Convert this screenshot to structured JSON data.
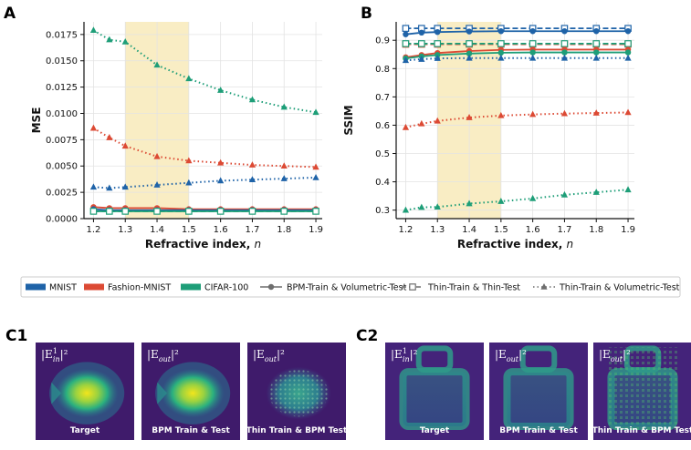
{
  "chart_data": [
    {
      "panel": "A",
      "type": "line",
      "xlabel_main": "Refractive index, ",
      "xlabel_var": "n",
      "ylabel": "MSE",
      "xlim": [
        1.17,
        1.92
      ],
      "ylim": [
        0,
        0.0187
      ],
      "x_ticks": [
        "1.2",
        "1.3",
        "1.4",
        "1.5",
        "1.6",
        "1.7",
        "1.8",
        "1.9"
      ],
      "y_ticks": [
        "0.0000",
        "0.0025",
        "0.0050",
        "0.0075",
        "0.0100",
        "0.0125",
        "0.0150",
        "0.0175"
      ],
      "highlight_range": [
        1.3,
        1.5
      ],
      "grid": true,
      "series": [
        {
          "dataset": "MNIST",
          "method": "Thin-Train & Volumetric-Test",
          "x": [
            1.2,
            1.25,
            1.3,
            1.4,
            1.5,
            1.6,
            1.7,
            1.8,
            1.9
          ],
          "values": [
            0.003,
            0.0029,
            0.003,
            0.0032,
            0.0034,
            0.0036,
            0.0037,
            0.0038,
            0.0039
          ]
        },
        {
          "dataset": "Fashion-MNIST",
          "method": "Thin-Train & Volumetric-Test",
          "x": [
            1.2,
            1.25,
            1.3,
            1.4,
            1.5,
            1.6,
            1.7,
            1.8,
            1.9
          ],
          "values": [
            0.0086,
            0.0077,
            0.0069,
            0.0059,
            0.0055,
            0.0053,
            0.0051,
            0.005,
            0.0049
          ]
        },
        {
          "dataset": "CIFAR-100",
          "method": "Thin-Train & Volumetric-Test",
          "x": [
            1.2,
            1.25,
            1.3,
            1.4,
            1.5,
            1.6,
            1.7,
            1.8,
            1.9
          ],
          "values": [
            0.0179,
            0.017,
            0.0168,
            0.0146,
            0.0133,
            0.0122,
            0.0113,
            0.0106,
            0.0101
          ]
        },
        {
          "dataset": "Fashion-MNIST",
          "method": "BPM-Train & Volumetric-Test",
          "x": [
            1.2,
            1.25,
            1.3,
            1.4,
            1.5,
            1.6,
            1.7,
            1.8,
            1.9
          ],
          "values": [
            0.0011,
            0.001,
            0.001,
            0.001,
            0.0009,
            0.0009,
            0.0009,
            0.0009,
            0.0009
          ]
        },
        {
          "dataset": "MNIST",
          "method": "BPM-Train & Volumetric-Test",
          "x": [
            1.2,
            1.25,
            1.3,
            1.4,
            1.5,
            1.6,
            1.7,
            1.8,
            1.9
          ],
          "values": [
            0.0009,
            0.0008,
            0.0008,
            0.0008,
            0.0008,
            0.0008,
            0.0008,
            0.0008,
            0.0008
          ]
        },
        {
          "dataset": "CIFAR-100",
          "method": "BPM-Train & Volumetric-Test",
          "x": [
            1.2,
            1.25,
            1.3,
            1.4,
            1.5,
            1.6,
            1.7,
            1.8,
            1.9
          ],
          "values": [
            0.0007,
            0.0007,
            0.0007,
            0.0007,
            0.0007,
            0.0007,
            0.0007,
            0.0007,
            0.0007
          ]
        },
        {
          "dataset": "CIFAR-100",
          "method": "Thin-Train & Thin-Test",
          "x": [
            1.2,
            1.25,
            1.3,
            1.4,
            1.5,
            1.6,
            1.7,
            1.8,
            1.9
          ],
          "values": [
            0.0007,
            0.0007,
            0.0007,
            0.0007,
            0.0007,
            0.0007,
            0.0007,
            0.0007,
            0.0007
          ]
        }
      ]
    },
    {
      "panel": "B",
      "type": "line",
      "xlabel_main": "Refractive index, ",
      "xlabel_var": "n",
      "ylabel": "SSIM",
      "xlim": [
        1.17,
        1.92
      ],
      "ylim": [
        0.27,
        0.965
      ],
      "x_ticks": [
        "1.2",
        "1.3",
        "1.4",
        "1.5",
        "1.6",
        "1.7",
        "1.8",
        "1.9"
      ],
      "y_ticks": [
        "0.3",
        "0.4",
        "0.5",
        "0.6",
        "0.7",
        "0.8",
        "0.9"
      ],
      "highlight_range": [
        1.3,
        1.5
      ],
      "grid": true,
      "series": [
        {
          "dataset": "MNIST",
          "method": "Thin-Train & Thin-Test",
          "x": [
            1.2,
            1.25,
            1.3,
            1.4,
            1.5,
            1.6,
            1.7,
            1.8,
            1.9
          ],
          "values": [
            0.942,
            0.942,
            0.942,
            0.942,
            0.942,
            0.942,
            0.942,
            0.942,
            0.942
          ]
        },
        {
          "dataset": "MNIST",
          "method": "BPM-Train & Volumetric-Test",
          "x": [
            1.2,
            1.25,
            1.3,
            1.4,
            1.5,
            1.6,
            1.7,
            1.8,
            1.9
          ],
          "values": [
            0.921,
            0.927,
            0.929,
            0.931,
            0.932,
            0.932,
            0.932,
            0.932,
            0.932
          ]
        },
        {
          "dataset": "Fashion-MNIST",
          "method": "Thin-Train & Thin-Test",
          "x": [
            1.2,
            1.25,
            1.3,
            1.4,
            1.5,
            1.6,
            1.7,
            1.8,
            1.9
          ],
          "values": [
            0.886,
            0.886,
            0.886,
            0.886,
            0.886,
            0.886,
            0.886,
            0.886,
            0.886
          ]
        },
        {
          "dataset": "CIFAR-100",
          "method": "Thin-Train & Thin-Test",
          "x": [
            1.2,
            1.25,
            1.3,
            1.4,
            1.5,
            1.6,
            1.7,
            1.8,
            1.9
          ],
          "values": [
            0.888,
            0.888,
            0.888,
            0.888,
            0.888,
            0.888,
            0.888,
            0.888,
            0.888
          ]
        },
        {
          "dataset": "Fashion-MNIST",
          "method": "BPM-Train & Volumetric-Test",
          "x": [
            1.2,
            1.25,
            1.3,
            1.4,
            1.5,
            1.6,
            1.7,
            1.8,
            1.9
          ],
          "values": [
            0.84,
            0.848,
            0.855,
            0.862,
            0.866,
            0.867,
            0.867,
            0.867,
            0.867
          ]
        },
        {
          "dataset": "CIFAR-100",
          "method": "BPM-Train & Volumetric-Test",
          "x": [
            1.2,
            1.25,
            1.3,
            1.4,
            1.5,
            1.6,
            1.7,
            1.8,
            1.9
          ],
          "values": [
            0.836,
            0.843,
            0.848,
            0.853,
            0.856,
            0.857,
            0.857,
            0.857,
            0.857
          ]
        },
        {
          "dataset": "MNIST",
          "method": "Thin-Train & Volumetric-Test",
          "x": [
            1.2,
            1.25,
            1.3,
            1.4,
            1.5,
            1.6,
            1.7,
            1.8,
            1.9
          ],
          "values": [
            0.829,
            0.833,
            0.836,
            0.837,
            0.837,
            0.837,
            0.837,
            0.837,
            0.837
          ]
        },
        {
          "dataset": "Fashion-MNIST",
          "method": "Thin-Train & Volumetric-Test",
          "x": [
            1.2,
            1.25,
            1.3,
            1.4,
            1.5,
            1.6,
            1.7,
            1.8,
            1.9
          ],
          "values": [
            0.592,
            0.605,
            0.615,
            0.627,
            0.634,
            0.638,
            0.641,
            0.643,
            0.645
          ]
        },
        {
          "dataset": "CIFAR-100",
          "method": "Thin-Train & Volumetric-Test",
          "x": [
            1.2,
            1.25,
            1.3,
            1.4,
            1.5,
            1.6,
            1.7,
            1.8,
            1.9
          ],
          "values": [
            0.3,
            0.31,
            0.311,
            0.323,
            0.331,
            0.341,
            0.354,
            0.363,
            0.372
          ]
        }
      ]
    }
  ],
  "colors": {
    "MNIST": "#1f63a8",
    "Fashion-MNIST": "#dc4a34",
    "CIFAR-100": "#1e9e78",
    "method_gray": "#6e6e6e",
    "highlight": "#f7e7b0"
  },
  "legend": {
    "items": [
      {
        "kind": "dataset",
        "key": "MNIST",
        "label": "MNIST"
      },
      {
        "kind": "dataset",
        "key": "Fashion-MNIST",
        "label": "Fashion-MNIST"
      },
      {
        "kind": "dataset",
        "key": "CIFAR-100",
        "label": "CIFAR-100"
      },
      {
        "kind": "method",
        "key": "bpm",
        "label": "BPM-Train & Volumetric-Test"
      },
      {
        "kind": "method",
        "key": "thin",
        "label": "Thin-Train & Thin-Test"
      },
      {
        "kind": "method",
        "key": "thinvol",
        "label": "Thin-Train & Volumetric-Test"
      }
    ]
  },
  "image_panels": {
    "C1": {
      "label": "C1",
      "tiles": [
        {
          "title_prefix": "|E",
          "title_sub": "in",
          "title_sup": "1",
          "title_suffix": "|²",
          "caption": "Target"
        },
        {
          "title_prefix": "|E",
          "title_sub": "out",
          "title_sup": "",
          "title_suffix": "|²",
          "caption": "BPM Train & Test"
        },
        {
          "title_prefix": "|E",
          "title_sub": "out",
          "title_sup": "",
          "title_suffix": "|²",
          "caption": "Thin Train & BPM Test"
        }
      ]
    },
    "C2": {
      "label": "C2",
      "tiles": [
        {
          "title_prefix": "|E",
          "title_sub": "in",
          "title_sup": "1",
          "title_suffix": "|²",
          "caption": "Target"
        },
        {
          "title_prefix": "|E",
          "title_sub": "out",
          "title_sup": "",
          "title_suffix": "|²",
          "caption": "BPM Train & Test"
        },
        {
          "title_prefix": "|E",
          "title_sub": "out",
          "title_sup": "",
          "title_suffix": "|²",
          "caption": "Thin Train & BPM Test"
        }
      ]
    }
  }
}
